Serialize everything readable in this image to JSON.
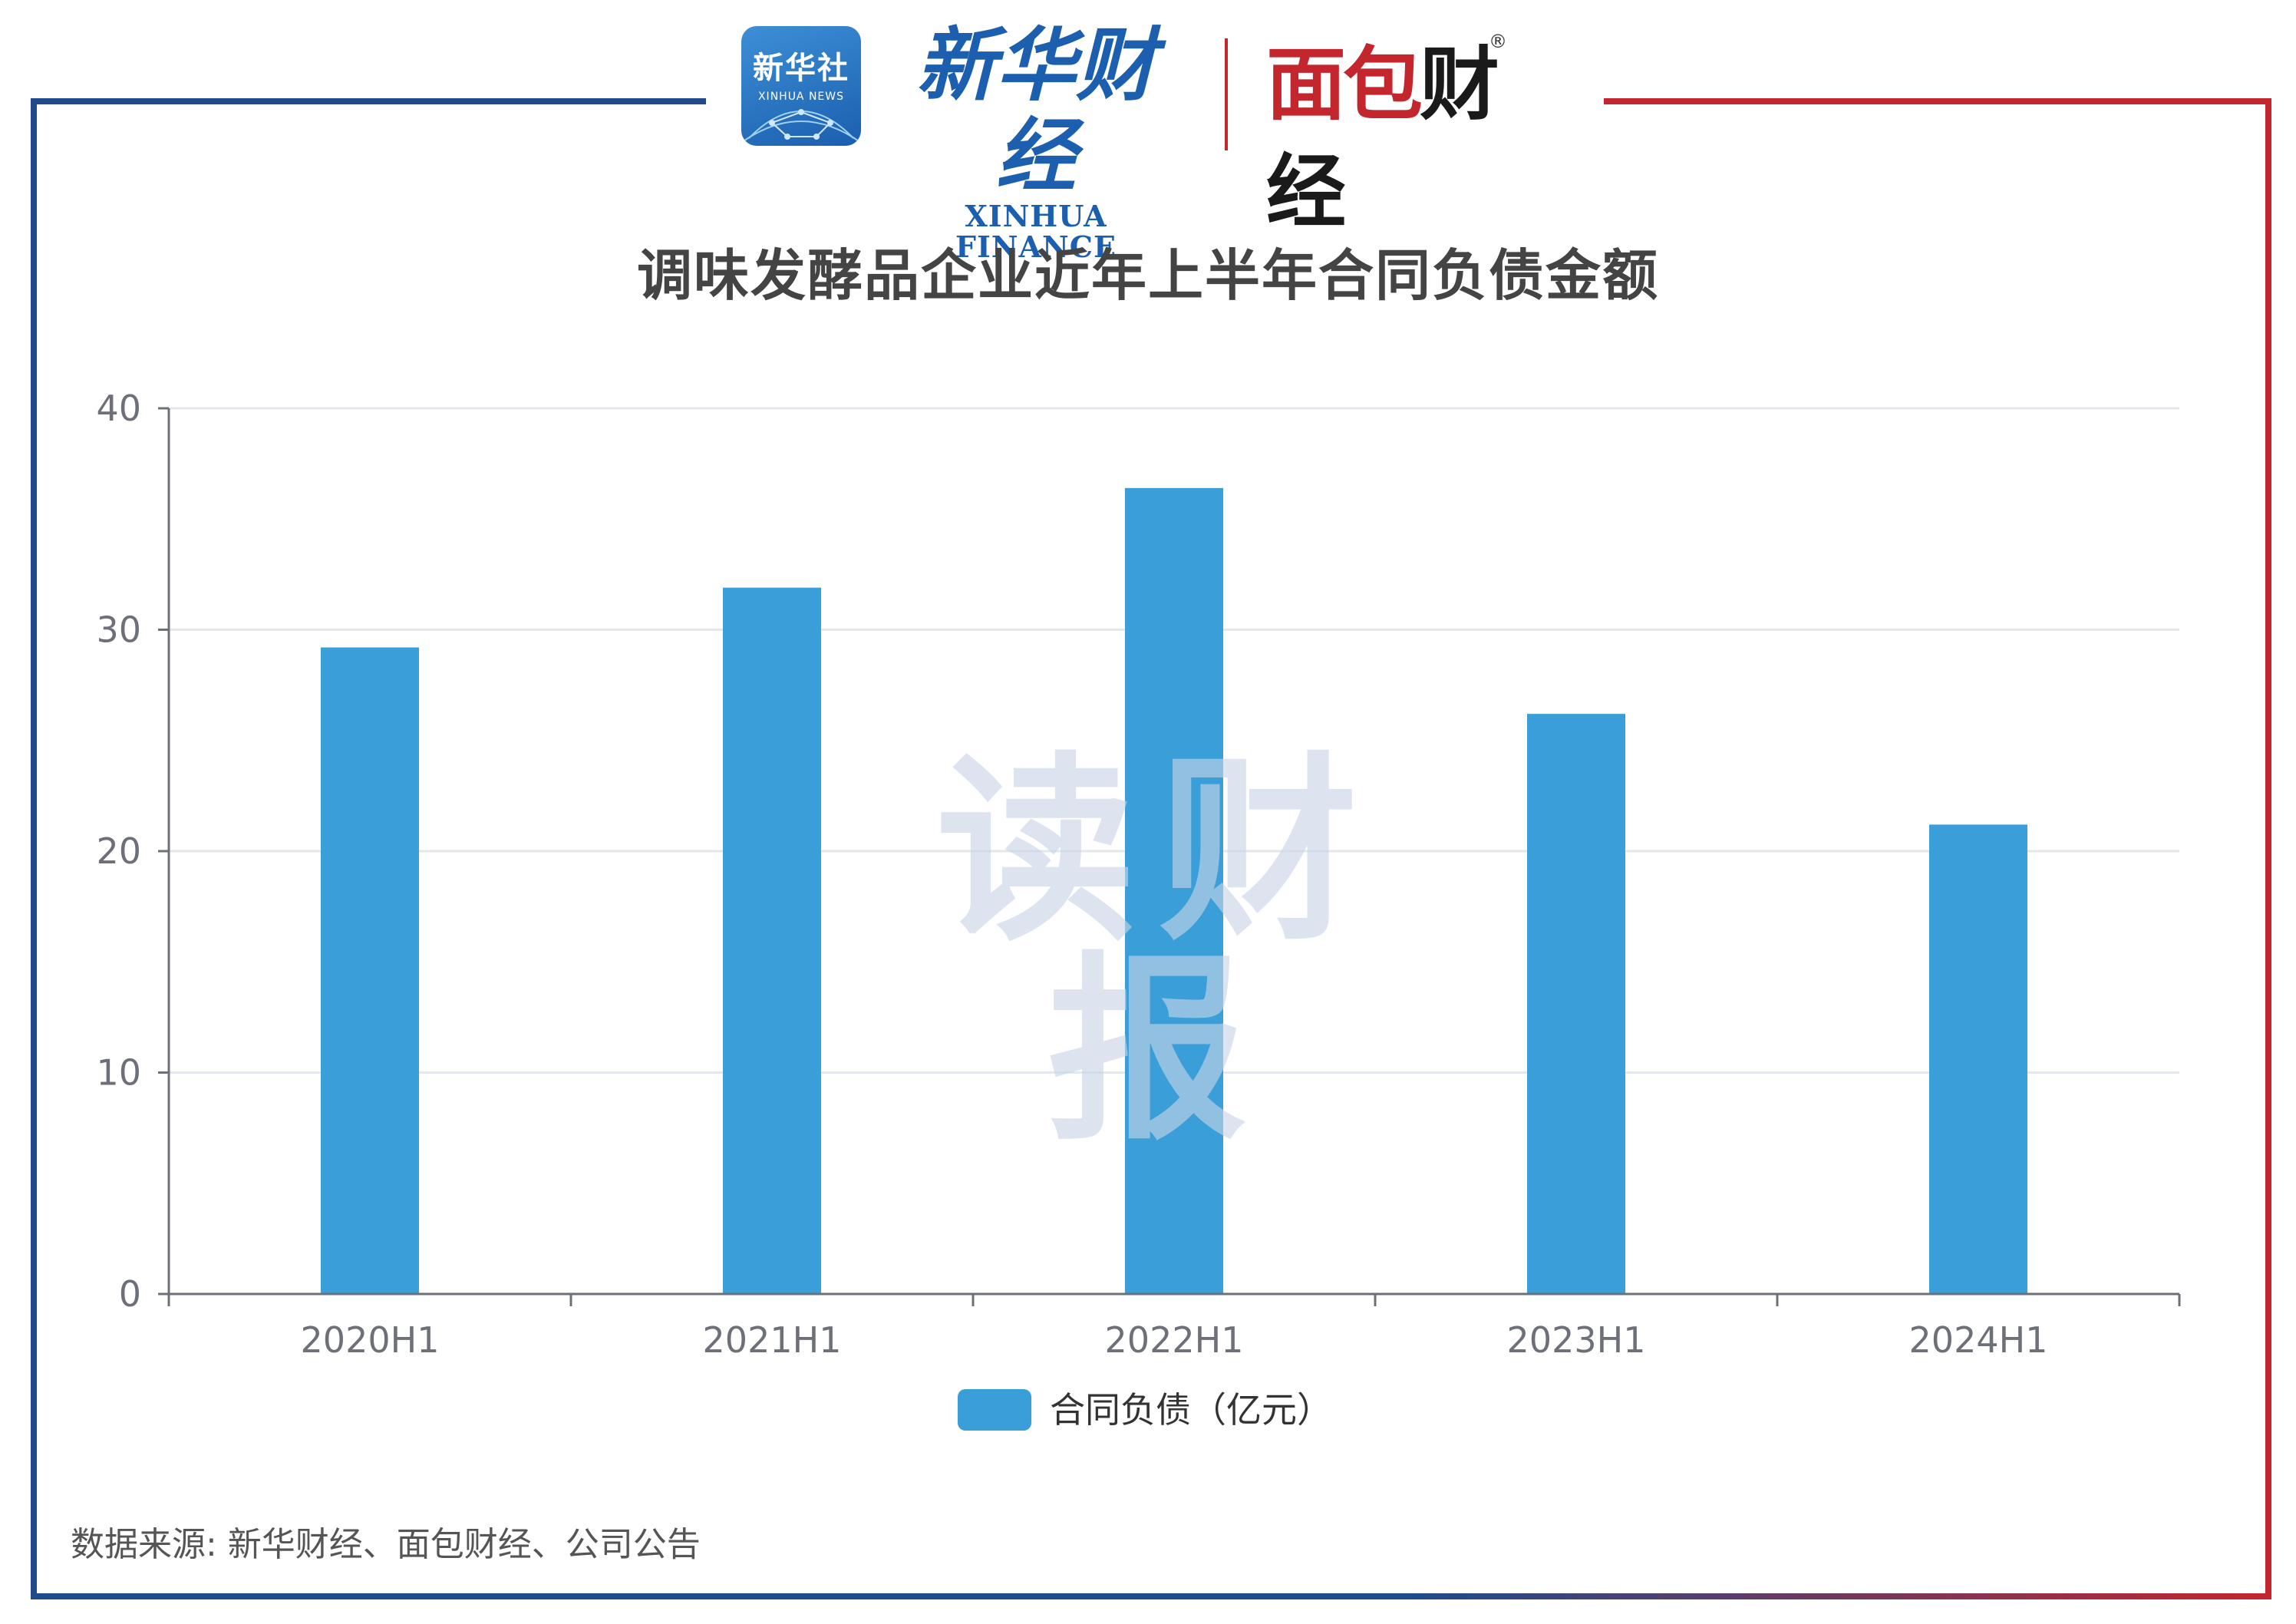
{
  "branding": {
    "xinhua_badge_cn": "新华社",
    "xinhua_badge_en": "XINHUA NEWS",
    "xinhua_finance_cn": "新华财经",
    "xinhua_finance_en": "XINHUA FINANCE",
    "mianbao_cn_red": "面包",
    "mianbao_cn_dark": "财经",
    "registered_mark": "®",
    "watermark": "读财报"
  },
  "colors": {
    "bar": "#3a9fd9",
    "frame_left": "#1f4a8c",
    "frame_right": "#c4262e"
  },
  "chart_data": {
    "type": "bar",
    "title": "调味发酵品企业近年上半年合同负债金额",
    "categories": [
      "2020H1",
      "2021H1",
      "2022H1",
      "2023H1",
      "2024H1"
    ],
    "series": [
      {
        "name": "合同负债（亿元）",
        "values": [
          29.2,
          31.9,
          36.4,
          26.2,
          21.2
        ]
      }
    ],
    "ylim": [
      0,
      40
    ],
    "yticks": [
      0,
      10,
      20,
      30,
      40
    ],
    "grid": true,
    "legend_position": "bottom-center"
  },
  "source_note": "数据来源: 新华财经、面包财经、公司公告"
}
